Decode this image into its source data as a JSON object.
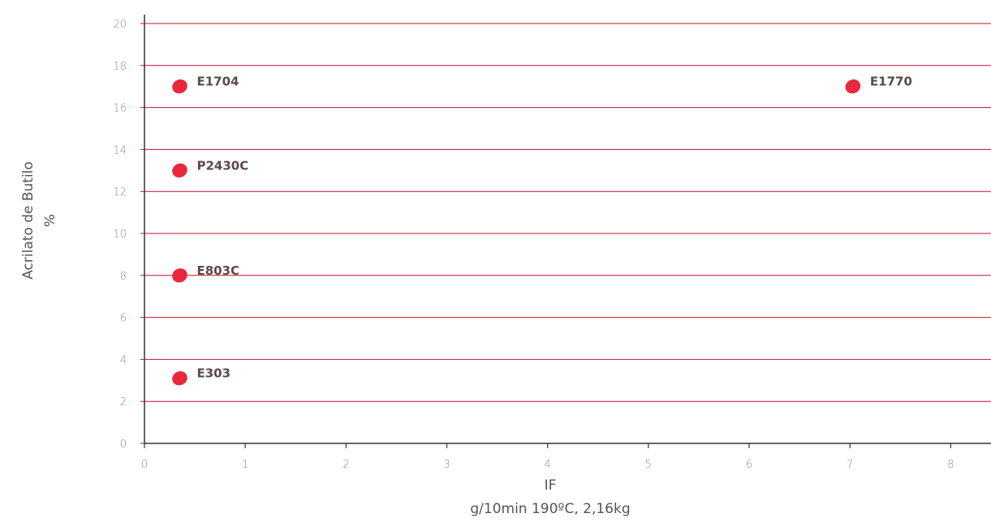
{
  "chart_data": {
    "type": "scatter",
    "xlabel": "IF",
    "xlabel_sub": "g/10min 190ºC, 2,16kg",
    "ylabel": "Acrilato de Butilo",
    "ylabel_sub": "%",
    "xlim": [
      0,
      8.4
    ],
    "ylim": [
      0,
      20
    ],
    "x_ticks": [
      "0",
      "1",
      "2",
      "3",
      "4",
      "5",
      "6",
      "7",
      "8"
    ],
    "y_ticks": [
      "0",
      "2",
      "4",
      "6",
      "8",
      "10",
      "12",
      "14",
      "16",
      "18",
      "20"
    ],
    "grid": "horizontal",
    "points": [
      {
        "label": "E1704",
        "x": 0.35,
        "y": 17
      },
      {
        "label": "E1770",
        "x": 7.03,
        "y": 17
      },
      {
        "label": "P2430C",
        "x": 0.35,
        "y": 13
      },
      {
        "label": "E803C",
        "x": 0.35,
        "y": 8
      },
      {
        "label": "E303",
        "x": 0.35,
        "y": 3.1
      }
    ],
    "colors": {
      "point": "#e8283f",
      "grid": "#c8102e",
      "axis": "#333333"
    }
  }
}
